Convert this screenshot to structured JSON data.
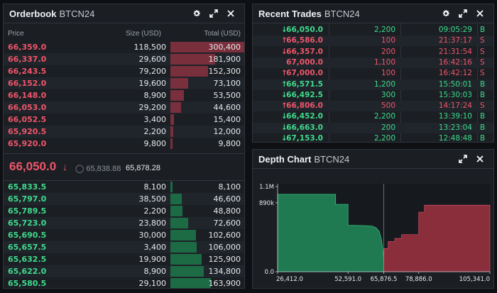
{
  "orderbook": {
    "title": "Orderbook",
    "symbol": "BTCN24",
    "columns": {
      "price": "Price",
      "size": "Size (USD)",
      "total": "Total (USD)"
    },
    "max_total": 300400,
    "asks": [
      {
        "price": "66,359.0",
        "size": "118,500",
        "total": "300,400",
        "total_value": 300400
      },
      {
        "price": "66,337.0",
        "size": "29,600",
        "total": "181,900",
        "total_value": 181900
      },
      {
        "price": "66,243.5",
        "size": "79,200",
        "total": "152,300",
        "total_value": 152300
      },
      {
        "price": "66,152.0",
        "size": "19,600",
        "total": "73,100",
        "total_value": 73100
      },
      {
        "price": "66,148.0",
        "size": "8,900",
        "total": "53,500",
        "total_value": 53500
      },
      {
        "price": "66,053.0",
        "size": "29,200",
        "total": "44,600",
        "total_value": 44600
      },
      {
        "price": "66,052.5",
        "size": "3,400",
        "total": "15,400",
        "total_value": 15400
      },
      {
        "price": "65,920.5",
        "size": "2,200",
        "total": "12,000",
        "total_value": 12000
      },
      {
        "price": "65,920.0",
        "size": "9,800",
        "total": "9,800",
        "total_value": 9800
      }
    ],
    "last_price": "66,050.0",
    "last_direction_icon": "arrow-down-icon",
    "index_price": "65,838.88",
    "mark_price": "65,878.28",
    "bids": [
      {
        "price": "65,833.5",
        "size": "8,100",
        "total": "8,100",
        "total_value": 8100
      },
      {
        "price": "65,797.0",
        "size": "38,500",
        "total": "46,600",
        "total_value": 46600
      },
      {
        "price": "65,789.5",
        "size": "2,200",
        "total": "48,800",
        "total_value": 48800
      },
      {
        "price": "65,723.0",
        "size": "23,800",
        "total": "72,600",
        "total_value": 72600
      },
      {
        "price": "65,690.5",
        "size": "30,000",
        "total": "102,600",
        "total_value": 102600
      },
      {
        "price": "65,657.5",
        "size": "3,400",
        "total": "106,000",
        "total_value": 106000
      },
      {
        "price": "65,632.5",
        "size": "19,900",
        "total": "125,900",
        "total_value": 125900
      },
      {
        "price": "65,622.0",
        "size": "8,900",
        "total": "134,800",
        "total_value": 134800
      },
      {
        "price": "65,580.5",
        "size": "29,100",
        "total": "163,900",
        "total_value": 163900
      }
    ]
  },
  "trades": {
    "title": "Recent Trades",
    "symbol": "BTCN24",
    "rows": [
      {
        "price": "66,050.0",
        "dir": "down",
        "size": "2,200",
        "time": "09:05:29",
        "side": "B"
      },
      {
        "price": "66,586.0",
        "dir": "up",
        "size": "100",
        "time": "21:37:17",
        "side": "S"
      },
      {
        "price": "66,357.0",
        "dir": "down",
        "size": "200",
        "time": "21:31:54",
        "side": "S"
      },
      {
        "price": "67,000.0",
        "dir": "none",
        "size": "1,100",
        "time": "16:42:16",
        "side": "S"
      },
      {
        "price": "67,000.0",
        "dir": "up",
        "size": "100",
        "time": "16:42:12",
        "side": "S"
      },
      {
        "price": "66,571.5",
        "dir": "up",
        "size": "1,200",
        "time": "15:50:01",
        "side": "B"
      },
      {
        "price": "66,492.5",
        "dir": "down",
        "size": "300",
        "time": "15:30:03",
        "side": "B"
      },
      {
        "price": "66,806.0",
        "dir": "up",
        "size": "500",
        "time": "14:17:24",
        "side": "S"
      },
      {
        "price": "66,452.0",
        "dir": "down",
        "size": "2,200",
        "time": "13:39:10",
        "side": "B"
      },
      {
        "price": "66,663.0",
        "dir": "down",
        "size": "200",
        "time": "13:23:04",
        "side": "B"
      },
      {
        "price": "67,153.0",
        "dir": "down",
        "size": "2,200",
        "time": "12:48:48",
        "side": "B"
      }
    ]
  },
  "depth": {
    "title": "Depth Chart",
    "symbol": "BTCN24"
  },
  "chart_data": {
    "type": "area",
    "title": "",
    "xlabel": "",
    "ylabel": "",
    "x_ticks": [
      "26,412.0",
      "52,591.0",
      "65,876.5",
      "78,886.0",
      "105,341.0"
    ],
    "y_ticks": [
      "1.1M",
      "890k",
      "0.0"
    ],
    "xlim": [
      26412,
      105341
    ],
    "ylim": [
      0,
      1100000
    ],
    "mid_price": 65876.5,
    "series": [
      {
        "side": "bid",
        "color": "#1f7a52",
        "points": [
          [
            26412,
            1000000
          ],
          [
            48000,
            1000000
          ],
          [
            48000,
            870000
          ],
          [
            52591,
            870000
          ],
          [
            52591,
            600000
          ],
          [
            59000,
            595000
          ],
          [
            61500,
            590000
          ],
          [
            63000,
            570000
          ],
          [
            64200,
            520000
          ],
          [
            65000,
            420000
          ],
          [
            65500,
            300000
          ],
          [
            65876.5,
            163900
          ]
        ]
      },
      {
        "side": "ask",
        "color": "#8a2e3c",
        "points": [
          [
            65876.5,
            0
          ],
          [
            66000,
            300400
          ],
          [
            67500,
            300400
          ],
          [
            67500,
            390000
          ],
          [
            70000,
            390000
          ],
          [
            70000,
            430000
          ],
          [
            72500,
            430000
          ],
          [
            72500,
            480000
          ],
          [
            78886,
            480000
          ],
          [
            78886,
            770000
          ],
          [
            81000,
            770000
          ],
          [
            81000,
            860000
          ],
          [
            105341,
            860000
          ]
        ]
      }
    ]
  },
  "colors": {
    "ask": "#f0556a",
    "bid": "#3fdb8c",
    "panel": "#1b1f24",
    "background": "#0e1014"
  }
}
